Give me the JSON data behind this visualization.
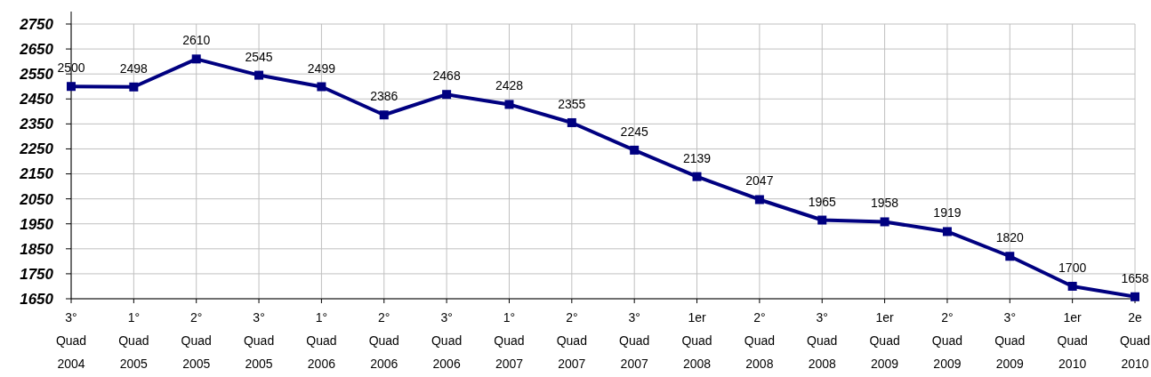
{
  "chart_data": {
    "type": "line",
    "categories": [
      "3°\nQuad\n2004",
      "1°\nQuad\n2005",
      "2°\nQuad\n2005",
      "3°\nQuad\n2005",
      "1°\nQuad\n2006",
      "2°\nQuad\n2006",
      "3°\nQuad\n2006",
      "1°\nQuad\n2007",
      "2°\nQuad\n2007",
      "3°\nQuad\n2007",
      "1er\nQuad\n2008",
      "2°\nQuad\n2008",
      "3°\nQuad\n2008",
      "1er\nQuad\n2009",
      "2°\nQuad\n2009",
      "3°\nQuad\n2009",
      "1er\nQuad\n2010",
      "2e\nQuad\n2010"
    ],
    "series": [
      {
        "color": "#000080",
        "values": [
          2500,
          2498,
          2610,
          2545,
          2499,
          2386,
          2468,
          2428,
          2355,
          2245,
          2139,
          2047,
          1965,
          1958,
          1919,
          1820,
          1700,
          1658
        ]
      }
    ],
    "ylim": [
      1650,
      2750
    ],
    "yticks": [
      1650,
      1750,
      1850,
      1950,
      2050,
      2150,
      2250,
      2350,
      2450,
      2550,
      2650,
      2750
    ],
    "grid": true,
    "marker": "square",
    "line_style": "solid",
    "data_labels": true
  }
}
